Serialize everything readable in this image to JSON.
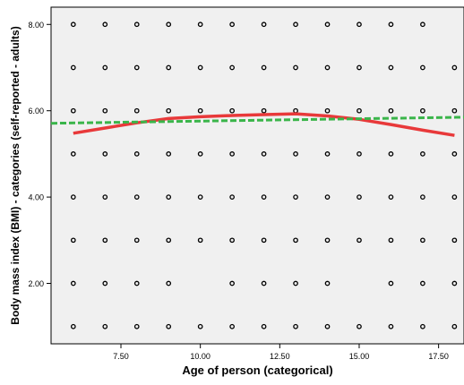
{
  "chart_data": {
    "type": "scatter",
    "title": "",
    "xlabel": "Age of person (categorical)",
    "ylabel": "Body mass index (BMI) - categories (self-reported - adults)",
    "xlim": [
      5.3,
      18.3
    ],
    "ylim": [
      0.6,
      8.4
    ],
    "x_ticks": [
      7.5,
      10.0,
      12.5,
      15.0,
      17.5
    ],
    "x_tick_labels": [
      "7.50",
      "10.00",
      "12.50",
      "15.00",
      "17.50"
    ],
    "y_ticks": [
      2.0,
      4.0,
      6.0,
      8.0
    ],
    "y_tick_labels": [
      "2.00",
      "4.00",
      "6.00",
      "8.00"
    ],
    "grid": false,
    "plot_background": "#f0f0f0",
    "marker_color": "#000000",
    "points": [
      [
        6,
        1
      ],
      [
        6,
        2
      ],
      [
        6,
        3
      ],
      [
        6,
        4
      ],
      [
        6,
        5
      ],
      [
        6,
        6
      ],
      [
        6,
        7
      ],
      [
        6,
        8
      ],
      [
        7,
        1
      ],
      [
        7,
        2
      ],
      [
        7,
        3
      ],
      [
        7,
        4
      ],
      [
        7,
        5
      ],
      [
        7,
        6
      ],
      [
        7,
        7
      ],
      [
        7,
        8
      ],
      [
        8,
        1
      ],
      [
        8,
        2
      ],
      [
        8,
        3
      ],
      [
        8,
        4
      ],
      [
        8,
        5
      ],
      [
        8,
        6
      ],
      [
        8,
        7
      ],
      [
        8,
        8
      ],
      [
        9,
        1
      ],
      [
        9,
        2
      ],
      [
        9,
        3
      ],
      [
        9,
        4
      ],
      [
        9,
        5
      ],
      [
        9,
        6
      ],
      [
        9,
        7
      ],
      [
        9,
        8
      ],
      [
        10,
        1
      ],
      [
        10,
        3
      ],
      [
        10,
        4
      ],
      [
        10,
        5
      ],
      [
        10,
        6
      ],
      [
        10,
        7
      ],
      [
        10,
        8
      ],
      [
        11,
        1
      ],
      [
        11,
        2
      ],
      [
        11,
        3
      ],
      [
        11,
        4
      ],
      [
        11,
        5
      ],
      [
        11,
        6
      ],
      [
        11,
        7
      ],
      [
        11,
        8
      ],
      [
        12,
        1
      ],
      [
        12,
        2
      ],
      [
        12,
        3
      ],
      [
        12,
        4
      ],
      [
        12,
        5
      ],
      [
        12,
        6
      ],
      [
        12,
        7
      ],
      [
        12,
        8
      ],
      [
        13,
        1
      ],
      [
        13,
        2
      ],
      [
        13,
        3
      ],
      [
        13,
        4
      ],
      [
        13,
        5
      ],
      [
        13,
        6
      ],
      [
        13,
        7
      ],
      [
        13,
        8
      ],
      [
        14,
        1
      ],
      [
        14,
        2
      ],
      [
        14,
        3
      ],
      [
        14,
        4
      ],
      [
        14,
        5
      ],
      [
        14,
        6
      ],
      [
        14,
        7
      ],
      [
        14,
        8
      ],
      [
        15,
        1
      ],
      [
        15,
        3
      ],
      [
        15,
        4
      ],
      [
        15,
        5
      ],
      [
        15,
        6
      ],
      [
        15,
        7
      ],
      [
        15,
        8
      ],
      [
        16,
        1
      ],
      [
        16,
        2
      ],
      [
        16,
        3
      ],
      [
        16,
        4
      ],
      [
        16,
        5
      ],
      [
        16,
        6
      ],
      [
        16,
        7
      ],
      [
        16,
        8
      ],
      [
        17,
        1
      ],
      [
        17,
        2
      ],
      [
        17,
        3
      ],
      [
        17,
        4
      ],
      [
        17,
        5
      ],
      [
        17,
        6
      ],
      [
        17,
        7
      ],
      [
        17,
        8
      ],
      [
        18,
        1
      ],
      [
        18,
        2
      ],
      [
        18,
        3
      ],
      [
        18,
        4
      ],
      [
        18,
        5
      ],
      [
        18,
        6
      ],
      [
        18,
        7
      ]
    ],
    "fit_lines": [
      {
        "kind": "loess",
        "style": "solid",
        "color": "#e8393a",
        "x": [
          6,
          7,
          8,
          9,
          10,
          11,
          12,
          13,
          14,
          15,
          16,
          17,
          18
        ],
        "y": [
          5.48,
          5.6,
          5.72,
          5.82,
          5.86,
          5.89,
          5.91,
          5.93,
          5.88,
          5.8,
          5.68,
          5.55,
          5.43
        ]
      },
      {
        "kind": "linear",
        "style": "dashed",
        "color": "#3ab54a",
        "x": [
          5.3,
          18.3
        ],
        "y": [
          5.71,
          5.85
        ]
      }
    ]
  }
}
